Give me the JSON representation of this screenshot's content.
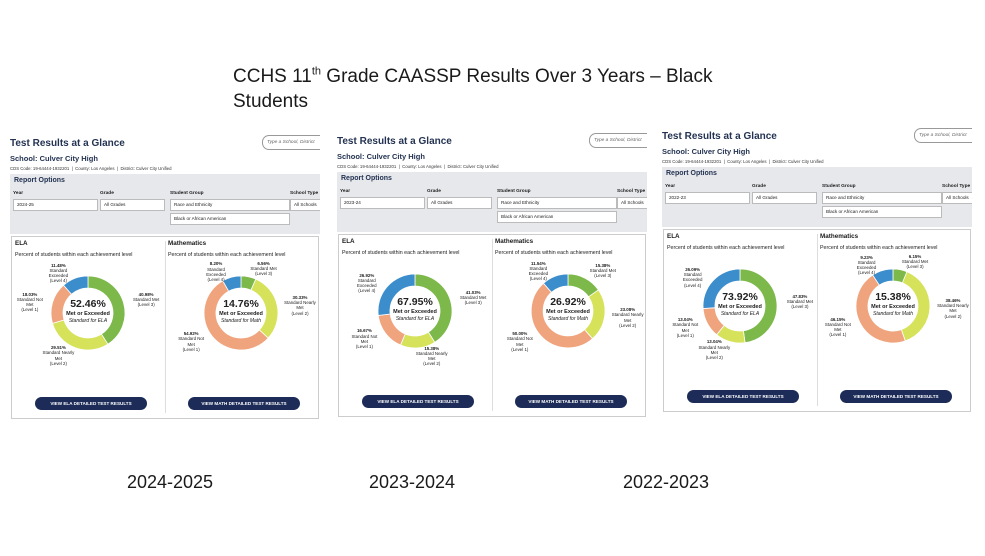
{
  "header": {
    "title_before": "CCHS 11",
    "title_sup": "th",
    "title_after": " Grade CAASSP Results Over 3 Years – Black Students"
  },
  "panels": [
    {
      "caption": "2024-2025",
      "title": "Test Results at a Glance",
      "search_placeholder": "Type a School, District",
      "school": "School: Culver City High",
      "cds": "CDS Code: 19-64444-1932201  |  County: Los Angeles  |  District: Culver City Unified",
      "report_options": {
        "title": "Report Options",
        "fields": [
          {
            "label": "Year",
            "value": "2024-25"
          },
          {
            "label": "Grade",
            "value": "All Grades"
          },
          {
            "label": "Student Group",
            "value": "Race and Ethnicity"
          },
          {
            "label": "School Type",
            "value": "All Schools"
          }
        ],
        "subgroup": "Black or African American"
      },
      "ela": {
        "title": "ELA",
        "subtitle": "Percent of students within each achievement level",
        "center_value": "52.46%",
        "center_label": "Met or Exceeded",
        "center_note": "Standard for ELA",
        "button": "VIEW ELA DETAILED TEST RESULTS",
        "segments": [
          {
            "name": "Standard Met",
            "level": "(Level 3)",
            "value": 40.98,
            "value_label": "40.98%",
            "color": "#7cb84a"
          },
          {
            "name": "Standard Nearly Met",
            "level": "(Level 2)",
            "value": 29.51,
            "value_label": "29.51%",
            "color": "#d5e25a"
          },
          {
            "name": "Standard Not Met",
            "level": "(Level 1)",
            "value": 18.03,
            "value_label": "18.03%",
            "color": "#f0a47e"
          },
          {
            "name": "Standard Exceeded",
            "level": "(Level 4)",
            "value": 11.48,
            "value_label": "11.48%",
            "color": "#3c8dcb"
          }
        ]
      },
      "math": {
        "title": "Mathematics",
        "subtitle": "Percent of students within each achievement level",
        "center_value": "14.76%",
        "center_label": "Met or Exceeded",
        "center_note": "Standard for Math",
        "button": "VIEW MATH DETAILED TEST RESULTS",
        "segments": [
          {
            "name": "Standard Met",
            "level": "(Level 3)",
            "value": 6.56,
            "value_label": "6.56%",
            "color": "#7cb84a"
          },
          {
            "name": "Standard Nearly Met",
            "level": "(Level 2)",
            "value": 30.33,
            "value_label": "30.33%",
            "color": "#d5e25a"
          },
          {
            "name": "Standard Not Met",
            "level": "(Level 1)",
            "value": 54.92,
            "value_label": "54.92%",
            "color": "#f0a47e"
          },
          {
            "name": "Standard Exceeded",
            "level": "(Level 4)",
            "value": 8.2,
            "value_label": "8.20%",
            "color": "#3c8dcb"
          }
        ]
      }
    },
    {
      "caption": "2023-2024",
      "title": "Test Results at a Glance",
      "search_placeholder": "Type a School, District",
      "school": "School: Culver City High",
      "cds": "CDS Code: 19-64444-1932201  |  County: Los Angeles  |  District: Culver City Unified",
      "report_options": {
        "title": "Report Options",
        "fields": [
          {
            "label": "Year",
            "value": "2023-24"
          },
          {
            "label": "Grade",
            "value": "All Grades"
          },
          {
            "label": "Student Group",
            "value": "Race and Ethnicity"
          },
          {
            "label": "School Type",
            "value": "All Schools"
          }
        ],
        "subgroup": "Black or African American"
      },
      "ela": {
        "title": "ELA",
        "subtitle": "Percent of students within each achievement level",
        "center_value": "67.95%",
        "center_label": "Met or Exceeded",
        "center_note": "Standard for ELA",
        "button": "VIEW ELA DETAILED TEST RESULTS",
        "segments": [
          {
            "name": "Standard Met",
            "level": "(Level 3)",
            "value": 41.03,
            "value_label": "41.03%",
            "color": "#7cb84a"
          },
          {
            "name": "Standard Nearly Met",
            "level": "(Level 2)",
            "value": 15.38,
            "value_label": "15.38%",
            "color": "#d5e25a"
          },
          {
            "name": "Standard Not Met",
            "level": "(Level 1)",
            "value": 16.67,
            "value_label": "16.67%",
            "color": "#f0a47e"
          },
          {
            "name": "Standard Exceeded",
            "level": "(Level 4)",
            "value": 26.92,
            "value_label": "26.92%",
            "color": "#3c8dcb"
          }
        ]
      },
      "math": {
        "title": "Mathematics",
        "subtitle": "Percent of students within each achievement level",
        "center_value": "26.92%",
        "center_label": "Met or Exceeded",
        "center_note": "Standard for Math",
        "button": "VIEW MATH DETAILED TEST RESULTS",
        "segments": [
          {
            "name": "Standard Met",
            "level": "(Level 3)",
            "value": 15.38,
            "value_label": "15.38%",
            "color": "#7cb84a"
          },
          {
            "name": "Standard Nearly Met",
            "level": "(Level 2)",
            "value": 23.08,
            "value_label": "23.08%",
            "color": "#d5e25a"
          },
          {
            "name": "Standard Not Met",
            "level": "(Level 1)",
            "value": 50,
            "value_label": "50.00%",
            "color": "#f0a47e"
          },
          {
            "name": "Standard Exceeded",
            "level": "(Level 4)",
            "value": 11.54,
            "value_label": "11.54%",
            "color": "#3c8dcb"
          }
        ]
      }
    },
    {
      "caption": "2022-2023",
      "title": "Test Results at a Glance",
      "search_placeholder": "Type a School, District",
      "school": "School: Culver City High",
      "cds": "CDS Code: 19-64444-1932201  |  County: Los Angeles  |  District: Culver City Unified",
      "report_options": {
        "title": "Report Options",
        "fields": [
          {
            "label": "Year",
            "value": "2022-23"
          },
          {
            "label": "Grade",
            "value": "All Grades"
          },
          {
            "label": "Student Group",
            "value": "Race and Ethnicity"
          },
          {
            "label": "School Type",
            "value": "All Schools"
          }
        ],
        "subgroup": "Black or African American"
      },
      "ela": {
        "title": "ELA",
        "subtitle": "Percent of students within each achievement level",
        "center_value": "73.92%",
        "center_label": "Met or Exceeded",
        "center_note": "Standard for ELA",
        "button": "VIEW ELA DETAILED TEST RESULTS",
        "segments": [
          {
            "name": "Standard Met",
            "level": "(Level 3)",
            "value": 47.83,
            "value_label": "47.83%",
            "color": "#7cb84a"
          },
          {
            "name": "Standard Nearly Met",
            "level": "(Level 2)",
            "value": 13.04,
            "value_label": "13.04%",
            "color": "#d5e25a"
          },
          {
            "name": "Standard Not Met",
            "level": "(Level 1)",
            "value": 13.04,
            "value_label": "13.04%",
            "color": "#f0a47e"
          },
          {
            "name": "Standard Exceeded",
            "level": "(Level 4)",
            "value": 26.09,
            "value_label": "26.09%",
            "color": "#3c8dcb"
          }
        ]
      },
      "math": {
        "title": "Mathematics",
        "subtitle": "Percent of students within each achievement level",
        "center_value": "15.38%",
        "center_label": "Met or Exceeded",
        "center_note": "Standard for Math",
        "button": "VIEW MATH DETAILED TEST RESULTS",
        "segments": [
          {
            "name": "Standard Met",
            "level": "(Level 3)",
            "value": 6.15,
            "value_label": "6.15%",
            "color": "#7cb84a"
          },
          {
            "name": "Standard Nearly Met",
            "level": "(Level 2)",
            "value": 38.46,
            "value_label": "38.46%",
            "color": "#d5e25a"
          },
          {
            "name": "Standard Not Met",
            "level": "(Level 1)",
            "value": 46.15,
            "value_label": "46.15%",
            "color": "#f0a47e"
          },
          {
            "name": "Standard Exceeded",
            "level": "(Level 4)",
            "value": 9.23,
            "value_label": "9.23%",
            "color": "#3c8dcb"
          }
        ]
      }
    }
  ]
}
